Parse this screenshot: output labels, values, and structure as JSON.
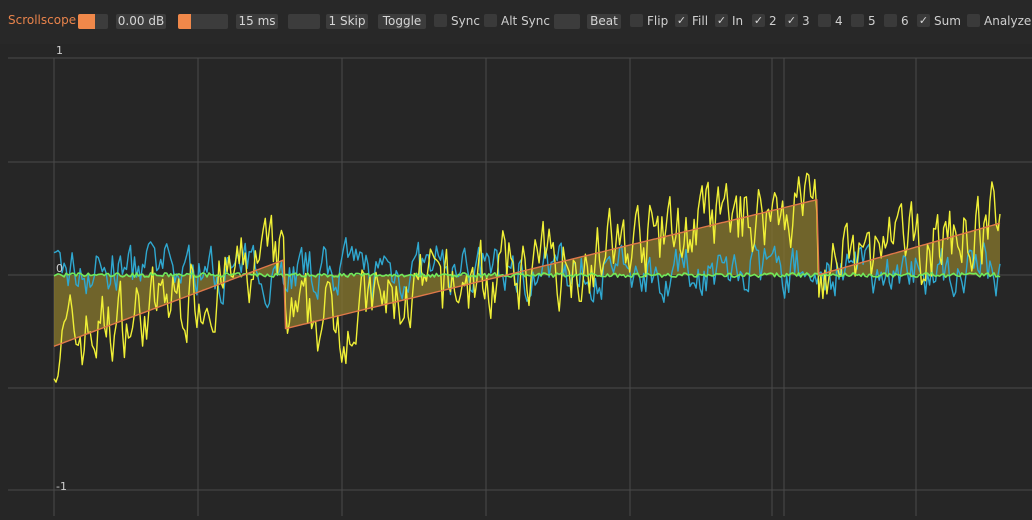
{
  "toolbar": {
    "title": "Scrollscope",
    "gain_value": "0.00 dB",
    "gain_fill": 0.55,
    "time_value": "15 ms",
    "time_fill": 0.25,
    "skip_value": "1 Skip",
    "toggle_label": "Toggle",
    "beat_label": "Beat",
    "checkboxes": [
      {
        "label": "Sync",
        "checked": false
      },
      {
        "label": "Alt Sync",
        "checked": false
      },
      {
        "label": "Flip",
        "checked": false
      },
      {
        "label": "Fill",
        "checked": true
      },
      {
        "label": "In",
        "checked": true
      },
      {
        "label": "2",
        "checked": true
      },
      {
        "label": "3",
        "checked": true
      },
      {
        "label": "4",
        "checked": false
      },
      {
        "label": "5",
        "checked": false
      },
      {
        "label": "6",
        "checked": false
      },
      {
        "label": "Sum",
        "checked": true
      },
      {
        "label": "Analyze",
        "checked": false
      }
    ],
    "check_glyph": "✓",
    "accent": "#e8834b"
  },
  "scope": {
    "y_top": "1",
    "y_mid": "0",
    "y_bot": "-1",
    "colors": {
      "background": "#262626",
      "grid": "#4a4a4a",
      "input": "#f0f036",
      "channel2": "#2fa8d0",
      "channel3": "#72e85a",
      "sum": "#e0784a",
      "fill": "#8a7a2e"
    }
  }
}
